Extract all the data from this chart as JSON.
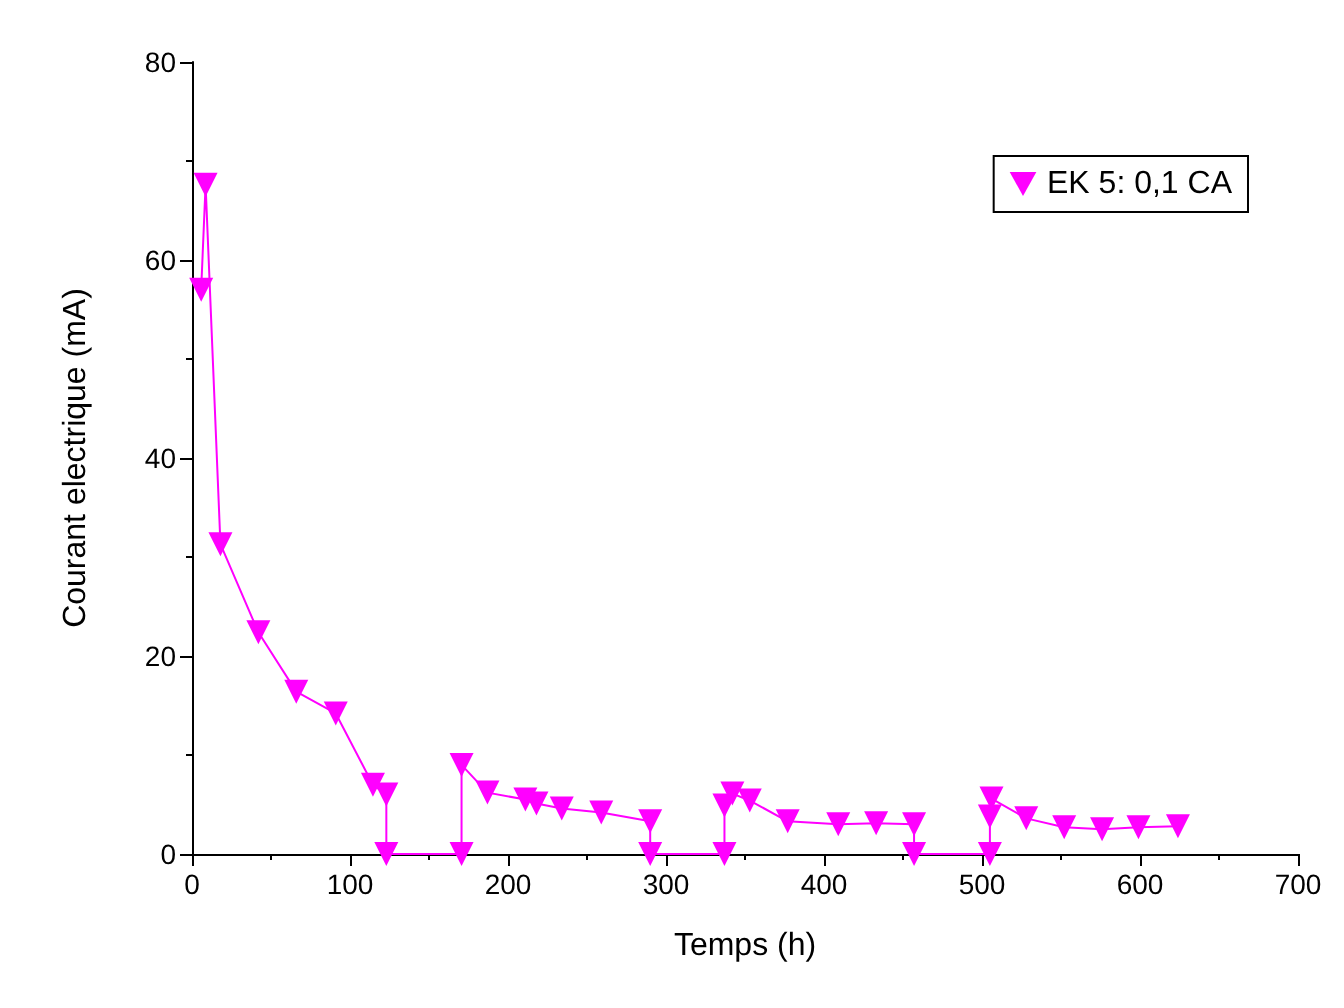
{
  "chart_data": {
    "type": "line",
    "xlabel": "Temps (h)",
    "ylabel": "Courant electrique (mA)",
    "x": [
      5.8,
      8.6,
      18,
      42,
      66,
      91,
      114.5,
      123,
      123,
      170.6,
      170.6,
      187,
      211,
      218,
      234,
      259,
      290,
      290,
      337,
      337,
      342,
      353,
      377,
      409,
      433,
      457,
      457,
      505,
      505,
      506,
      528,
      552,
      576,
      599,
      624
    ],
    "series": [
      {
        "name": "EK 5: 0,1 CA",
        "color": "#ff00ff",
        "values": [
          57,
          67.6,
          31.3,
          22.4,
          16.4,
          14.2,
          7.0,
          6.0,
          0,
          0,
          9.0,
          6.2,
          5.5,
          5.1,
          4.6,
          4.2,
          3.3,
          0,
          0,
          4.9,
          6.1,
          5.4,
          3.3,
          3.0,
          3.1,
          3.0,
          0,
          0,
          3.8,
          5.6,
          3.6,
          2.7,
          2.5,
          2.7,
          2.8
        ]
      }
    ],
    "xlim": [
      0,
      700
    ],
    "xticks": [
      0,
      100,
      200,
      300,
      400,
      500,
      600,
      700
    ],
    "ylim": [
      0,
      80
    ],
    "yticks": [
      0,
      20,
      40,
      60,
      80
    ],
    "grid": false,
    "legend": "top right",
    "marker": "triangle",
    "line_style": "solid"
  }
}
